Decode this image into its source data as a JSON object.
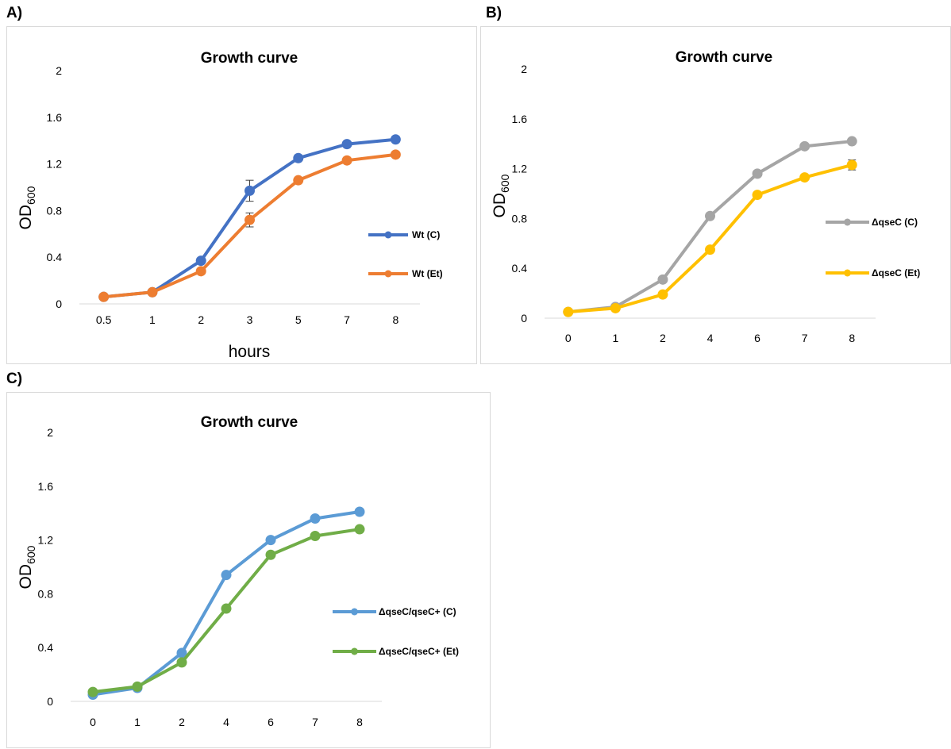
{
  "chart_data": [
    {
      "panel_label": "A)",
      "type": "line",
      "title": "Growth curve",
      "xlabel": "hours",
      "ylabel": "OD",
      "ylabel_sub": "600",
      "categories": [
        "0.5",
        "1",
        "2",
        "3",
        "5",
        "7",
        "8"
      ],
      "yticks": [
        "0",
        "0.4",
        "0.8",
        "1.2",
        "1.6",
        "2"
      ],
      "ylim": [
        0,
        2
      ],
      "grid": false,
      "legend_position": "right",
      "series": [
        {
          "name": "Wt (C)",
          "color": "#4472C4",
          "values": [
            0.06,
            0.1,
            0.37,
            0.97,
            1.25,
            1.37,
            1.41
          ],
          "errors": [
            0,
            0,
            0,
            0.09,
            0,
            0,
            0
          ]
        },
        {
          "name": "Wt (Et)",
          "color": "#ED7D31",
          "values": [
            0.06,
            0.1,
            0.28,
            0.72,
            1.06,
            1.23,
            1.28
          ],
          "errors": [
            0,
            0,
            0,
            0.06,
            0,
            0,
            0
          ]
        }
      ]
    },
    {
      "panel_label": "B)",
      "type": "line",
      "title": "Growth curve",
      "xlabel": "",
      "ylabel": "OD",
      "ylabel_sub": "600",
      "categories": [
        "0",
        "1",
        "2",
        "4",
        "6",
        "7",
        "8"
      ],
      "yticks": [
        "0",
        "0.4",
        "0.8",
        "1.2",
        "1.6",
        "2"
      ],
      "ylim": [
        0,
        2
      ],
      "grid": false,
      "legend_position": "right",
      "series": [
        {
          "name": "ΔqseC  (C)",
          "color": "#A5A5A5",
          "values": [
            0.05,
            0.09,
            0.31,
            0.82,
            1.16,
            1.38,
            1.42
          ],
          "errors": [
            0,
            0,
            0,
            0,
            0,
            0,
            0
          ]
        },
        {
          "name": "ΔqseC  (Et)",
          "color": "#FFC000",
          "values": [
            0.05,
            0.08,
            0.19,
            0.55,
            0.99,
            1.13,
            1.23
          ],
          "errors": [
            0,
            0,
            0,
            0,
            0,
            0,
            0.04
          ]
        }
      ]
    },
    {
      "panel_label": "C)",
      "type": "line",
      "title": "Growth curve",
      "xlabel": "",
      "ylabel": "OD",
      "ylabel_sub": "600",
      "categories": [
        "0",
        "1",
        "2",
        "4",
        "6",
        "7",
        "8"
      ],
      "yticks": [
        "0",
        "0.4",
        "0.8",
        "1.2",
        "1.6",
        "2"
      ],
      "ylim": [
        0,
        2
      ],
      "grid": false,
      "legend_position": "right",
      "series": [
        {
          "name": "ΔqseC/qseC+ (C)",
          "color": "#5B9BD5",
          "values": [
            0.05,
            0.1,
            0.36,
            0.94,
            1.2,
            1.36,
            1.41
          ],
          "errors": [
            0,
            0,
            0,
            0,
            0,
            0,
            0
          ]
        },
        {
          "name": "ΔqseC/qseC+ (Et)",
          "color": "#70AD47",
          "values": [
            0.07,
            0.11,
            0.29,
            0.69,
            1.09,
            1.23,
            1.28
          ],
          "errors": [
            0,
            0,
            0,
            0,
            0,
            0,
            0
          ]
        }
      ]
    }
  ]
}
